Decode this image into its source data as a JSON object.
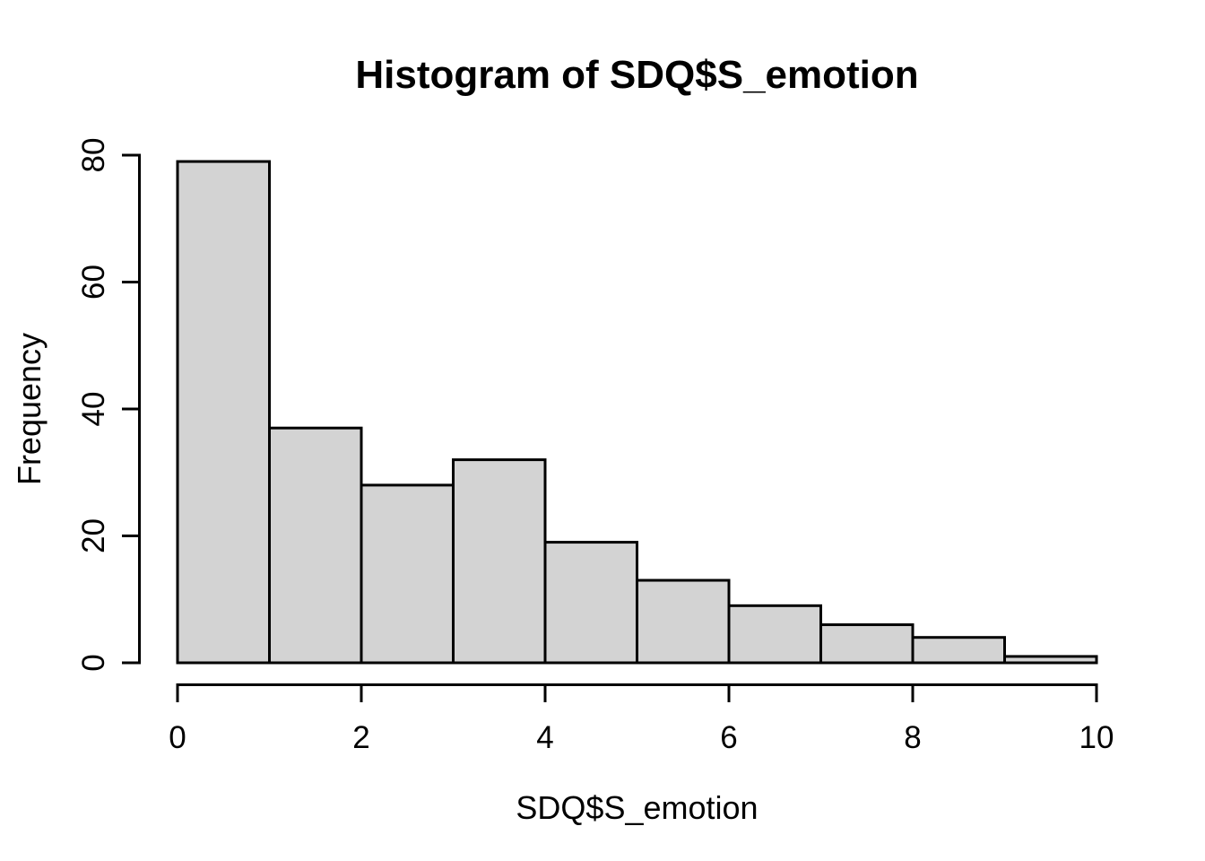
{
  "chart_data": {
    "type": "bar",
    "subtype": "histogram",
    "title": "Histogram of SDQ$S_emotion",
    "xlabel": "SDQ$S_emotion",
    "ylabel": "Frequency",
    "bin_edges": [
      0,
      1,
      2,
      3,
      4,
      5,
      6,
      7,
      8,
      9,
      10
    ],
    "counts": [
      79,
      37,
      28,
      32,
      19,
      13,
      9,
      6,
      4,
      1
    ],
    "x_ticks": [
      0,
      2,
      4,
      6,
      8,
      10
    ],
    "x_tick_labels": [
      "0",
      "2",
      "4",
      "6",
      "8",
      "10"
    ],
    "y_ticks": [
      0,
      20,
      40,
      60,
      80
    ],
    "y_tick_labels": [
      "0",
      "20",
      "40",
      "60",
      "80"
    ],
    "xlim": [
      0,
      10
    ],
    "ylim": [
      0,
      80
    ],
    "grid": false,
    "legend": "none",
    "colors": {
      "bar_fill": "#D3D3D3",
      "bar_stroke": "#000000",
      "axis_stroke": "#000000",
      "text": "#000000",
      "background": "#FFFFFF"
    }
  }
}
